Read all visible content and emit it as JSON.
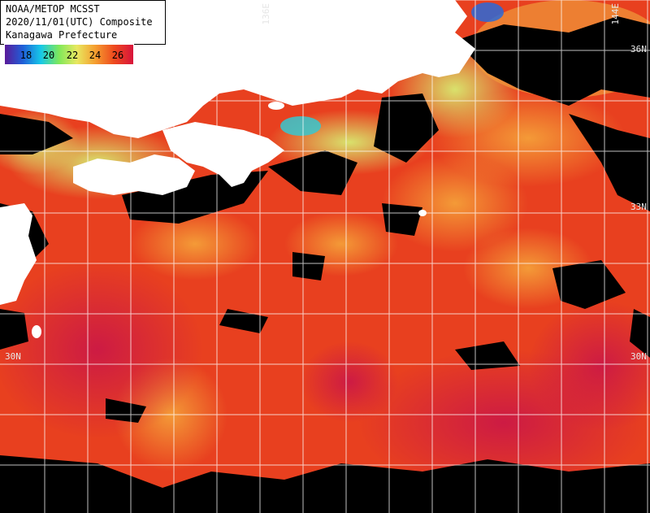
{
  "header": {
    "line1": "NOAA/METOP MCSST",
    "line2": "2020/11/01(UTC) Composite",
    "line3": "Kanagawa Prefecture"
  },
  "colorbar": {
    "ticks": [
      "18",
      "20",
      "22",
      "24",
      "26"
    ],
    "colors": [
      "#5a1a9a",
      "#1f5fd8",
      "#16c8e8",
      "#7ee85a",
      "#e8e860",
      "#f5a030",
      "#ee4a1e",
      "#d8143c"
    ]
  },
  "grid_labels": {
    "lon_136": "136E",
    "lon_144": "144E",
    "lat_30_left": "30N",
    "lat_30_right": "30N",
    "lat_33_right": "33N",
    "lat_36_right": "36N"
  },
  "colors": {
    "land": "#ffffff",
    "cloud": "#000000",
    "grid": "#ffffff",
    "sst_warm": "#e8401f",
    "sst_hot": "#d21e3a",
    "sst_mid": "#f08a38",
    "sst_cool": "#c8e86a",
    "sst_cold": "#36c8d0"
  }
}
